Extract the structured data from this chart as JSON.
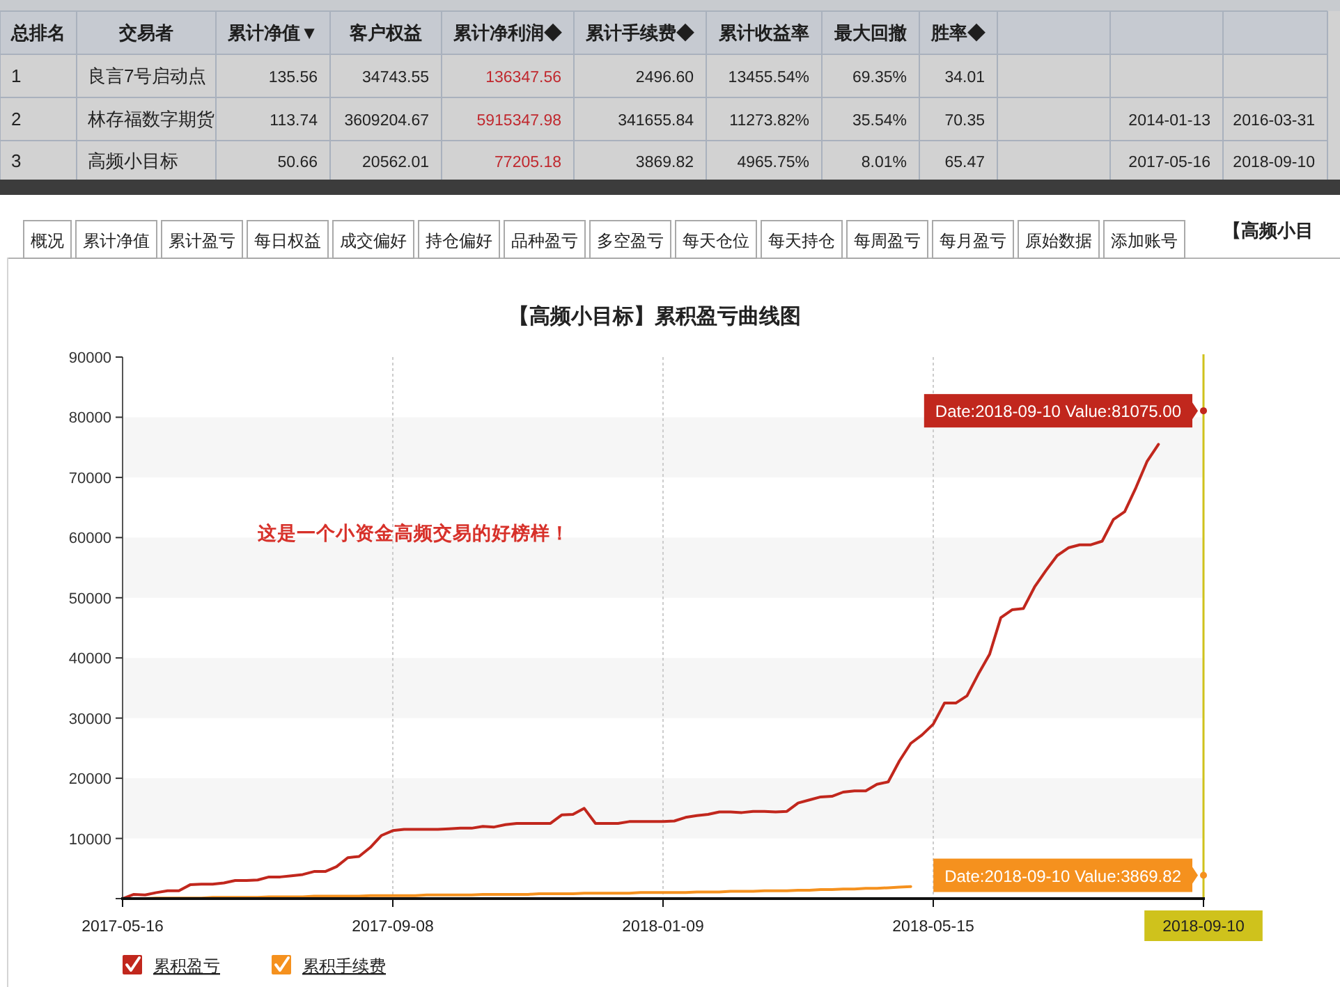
{
  "chart_data": [
    {
      "type": "other",
      "categories": [
        "总排名",
        "交易者",
        "累计净值▼",
        "客户权益",
        "累计净利润◆",
        "累计手续费◆",
        "累计收益率",
        "最大回撤",
        "胜率◆",
        null,
        null,
        null
      ],
      "annotations": [
        "1",
        "良言7号启动点",
        "135.56",
        "34743.55",
        "136347.56",
        "2496.60",
        "13455.54%",
        "69.35%",
        "34.01",
        null,
        null,
        null,
        "2",
        "林存福数字期货",
        "113.74",
        "3609204.67",
        "5915347.98",
        "341655.84",
        "11273.82%",
        "35.54%",
        "70.35",
        null,
        "2014-01-13",
        "2016-03-31",
        "3",
        "高频小目标",
        "50.66",
        "20562.01",
        "77205.18",
        "3869.82",
        "4965.75%",
        "8.01%",
        "65.47",
        null,
        "2017-05-16",
        "2018-09-10"
      ]
    },
    {
      "type": "other",
      "title": "【高频小目",
      "annotations": [
        "概况",
        "累计净值",
        "累计盈亏",
        "每日权益",
        "成交偏好",
        "持仓偏好",
        "品种盈亏",
        "多空盈亏",
        "每天仓位",
        "每天持仓",
        "每周盈亏",
        "每月盈亏",
        "原始数据",
        "添加账号"
      ]
    },
    {
      "type": "line",
      "title": "【高频小目标】累积盈亏曲线图",
      "categories": [
        "2017-05-16",
        null,
        null,
        null,
        null,
        null,
        null,
        null,
        null,
        null,
        null,
        null,
        null,
        null,
        null,
        null,
        null,
        null,
        null,
        null,
        null,
        null,
        null,
        null,
        "2017-09-08",
        null,
        null,
        null,
        null,
        null,
        null,
        null,
        null,
        null,
        null,
        null,
        null,
        null,
        null,
        null,
        null,
        null,
        null,
        null,
        null,
        null,
        null,
        null,
        "2018-01-09",
        null,
        null,
        null,
        null,
        null,
        null,
        null,
        null,
        null,
        null,
        null,
        null,
        null,
        null,
        null,
        null,
        null,
        null,
        null,
        null,
        null,
        null,
        null,
        "2018-05-15",
        null,
        null,
        null,
        null,
        null,
        null,
        null,
        null,
        null,
        null,
        null,
        null,
        null,
        null,
        null,
        null,
        null,
        null,
        null,
        null,
        null,
        null,
        null,
        "2018-09-10"
      ],
      "series": [
        {
          "name": "累积盈亏",
          "color": "#c1271d",
          "values": [
            0,
            700,
            600,
            1000,
            1300,
            1300,
            2300,
            2400,
            2400,
            2600,
            3000,
            3000,
            3100,
            3600,
            3600,
            3800,
            4000,
            4500,
            4500,
            5300,
            6800,
            7000,
            8500,
            10500,
            11300,
            11500,
            11500,
            11500,
            11500,
            11600,
            11700,
            11700,
            12000,
            11900,
            12300,
            12500,
            12500,
            12500,
            12500,
            13900,
            14000,
            15000,
            12500,
            12500,
            12500,
            12800,
            12800,
            12800,
            12800,
            12900,
            13500,
            13800,
            14000,
            14400,
            14400,
            14300,
            14500,
            14500,
            14400,
            14500,
            15900,
            16400,
            16900,
            17000,
            17700,
            17900,
            17900,
            19000,
            19400,
            22900,
            25800,
            27200,
            29000,
            32500,
            32500,
            33700,
            37300,
            40600,
            46700,
            48000,
            48200,
            51800,
            54500,
            57000,
            58300,
            58800,
            58800,
            59400,
            63000,
            64300,
            68300,
            72700,
            75500,
            null,
            null,
            null,
            81075
          ]
        },
        {
          "name": "累积手续费",
          "color": "#f5911e",
          "values": [
            0,
            0,
            0,
            100,
            100,
            100,
            100,
            100,
            200,
            200,
            200,
            200,
            200,
            300,
            300,
            300,
            300,
            400,
            400,
            400,
            400,
            400,
            500,
            500,
            500,
            500,
            500,
            600,
            600,
            600,
            600,
            600,
            700,
            700,
            700,
            700,
            700,
            800,
            800,
            800,
            800,
            900,
            900,
            900,
            900,
            900,
            1000,
            1000,
            1000,
            1000,
            1000,
            1100,
            1100,
            1100,
            1200,
            1200,
            1200,
            1300,
            1300,
            1300,
            1400,
            1400,
            1500,
            1500,
            1600,
            1600,
            1700,
            1700,
            1800,
            1900,
            2000,
            null,
            null,
            null,
            null,
            null,
            null,
            null,
            null,
            null,
            null,
            null,
            null,
            null,
            null,
            null,
            null,
            null,
            null,
            null,
            null,
            null,
            null,
            null,
            null,
            null,
            3869.82
          ]
        }
      ],
      "ylim": [
        0,
        90000
      ],
      "yticks": [
        {
          "value": 0,
          "label": null
        },
        10000,
        20000,
        30000,
        40000,
        50000,
        60000,
        70000,
        80000,
        90000
      ],
      "grid": "x",
      "bands": [
        {
          "axis": "y",
          "from": 10000,
          "to": 20000,
          "color": "#f6f6f6"
        },
        {
          "axis": "y",
          "from": 30000,
          "to": 40000,
          "color": "#f6f6f6"
        },
        {
          "axis": "y",
          "from": 50000,
          "to": 60000,
          "color": "#f6f6f6"
        },
        {
          "axis": "y",
          "from": 70000,
          "to": 80000,
          "color": "#f6f6f6"
        }
      ],
      "ref_lines": [
        {
          "axis": "x",
          "value": "2018-09-10",
          "color": "#cfc21c"
        }
      ],
      "annotations": [
        "这是一个小资金高频交易的好榜样！",
        {
          "text": "Date:2018-09-10 Value:81075.00",
          "x": "2018-09-10",
          "y": 81075
        },
        {
          "text": "Date:2018-09-10 Value:3869.82",
          "x": "2018-09-10",
          "y": 3869.82
        }
      ],
      "legend": "bottom left",
      "marker": "none",
      "line_style": "solid"
    }
  ]
}
